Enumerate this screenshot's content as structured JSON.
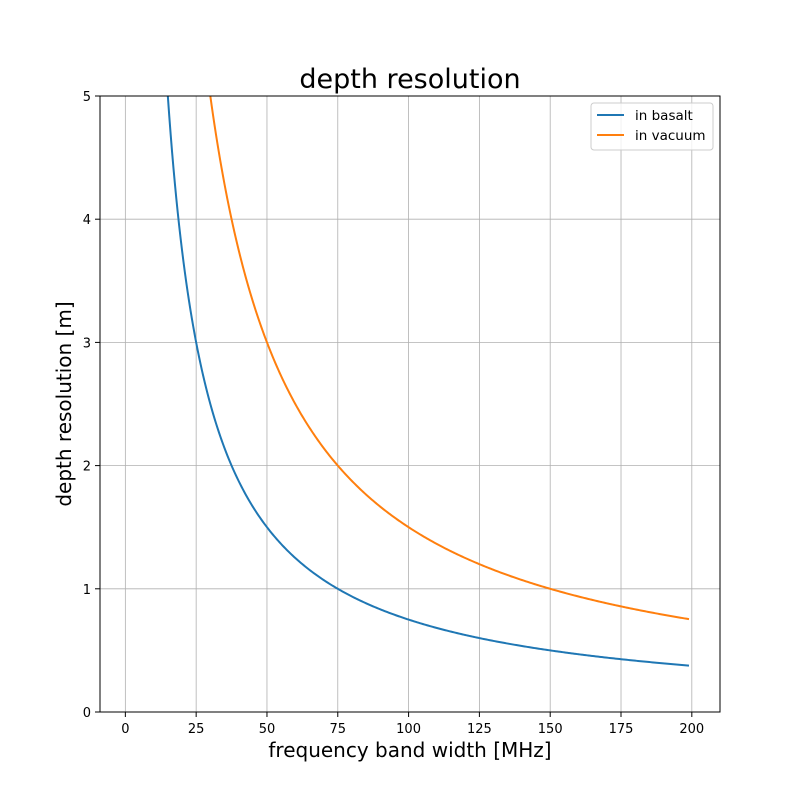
{
  "chart_data": {
    "type": "line",
    "title": "depth resolution",
    "xlabel": "frequency band width [MHz]",
    "ylabel": "depth resolution [m]",
    "xlim": [
      -8.95,
      209.95
    ],
    "ylim": [
      0,
      5
    ],
    "xticks": [
      0,
      25,
      50,
      75,
      100,
      125,
      150,
      175,
      200
    ],
    "yticks": [
      0,
      1,
      2,
      3,
      4,
      5
    ],
    "grid": true,
    "legend_position": "top-right",
    "x_range": [
      1,
      199
    ],
    "series": [
      {
        "name": "in basalt",
        "color": "#1f77b4",
        "formula": "75/x",
        "sample_points": [
          [
            15,
            5.0
          ],
          [
            25,
            3.0
          ],
          [
            50,
            1.5
          ],
          [
            75,
            1.0
          ],
          [
            100,
            0.75
          ],
          [
            125,
            0.6
          ],
          [
            150,
            0.5
          ],
          [
            175,
            0.43
          ],
          [
            199,
            0.377
          ]
        ]
      },
      {
        "name": "in vacuum",
        "color": "#ff7f0e",
        "formula": "150/x",
        "sample_points": [
          [
            30,
            5.0
          ],
          [
            50,
            3.0
          ],
          [
            75,
            2.0
          ],
          [
            100,
            1.5
          ],
          [
            125,
            1.2
          ],
          [
            150,
            1.0
          ],
          [
            175,
            0.857
          ],
          [
            199,
            0.754
          ]
        ]
      }
    ]
  }
}
